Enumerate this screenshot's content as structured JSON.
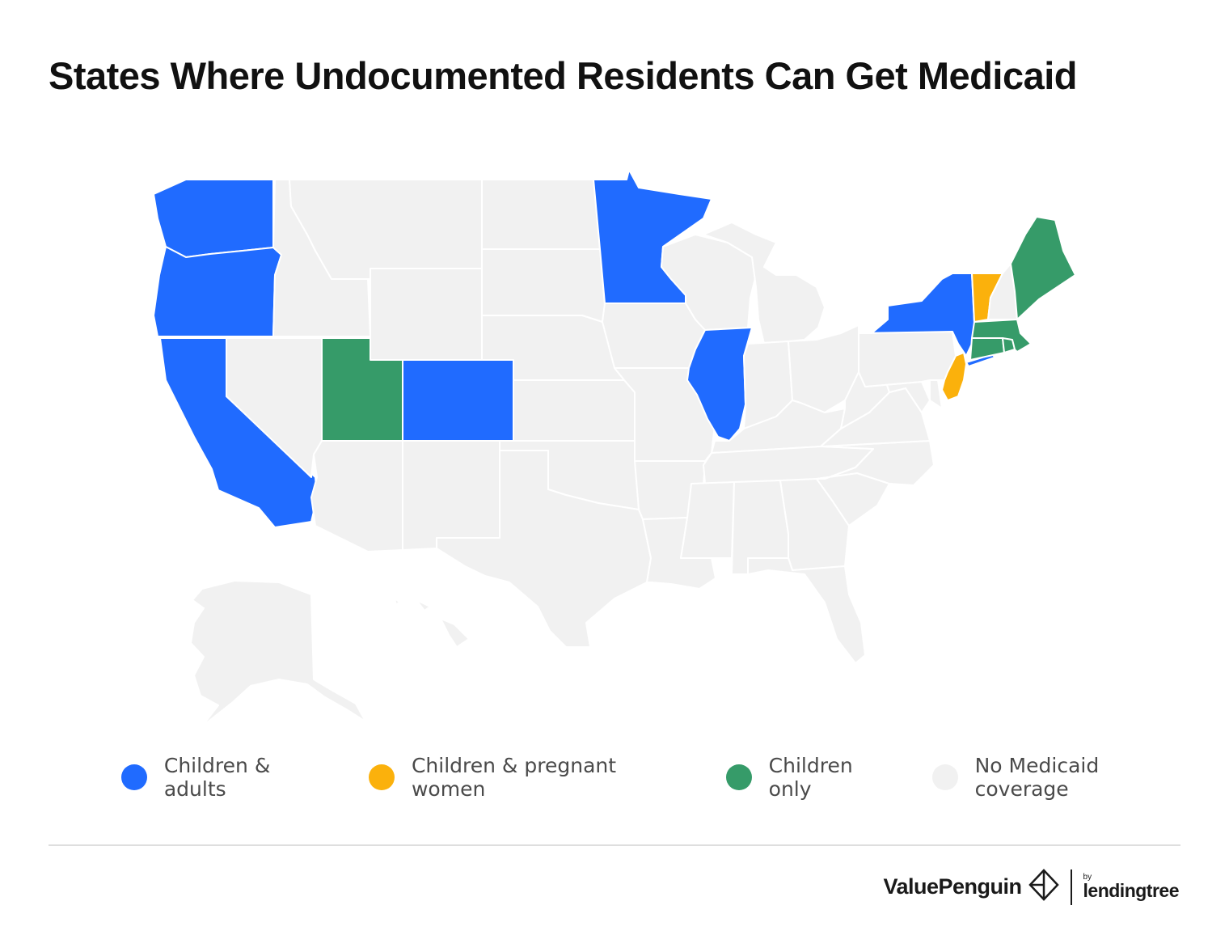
{
  "title": "States Where Undocumented Residents Can Get Medicaid",
  "colors": {
    "children_adults": "#206bff",
    "children_pregnant": "#fbb10c",
    "children_only": "#369b69",
    "none": "#f1f1f1"
  },
  "legend": [
    {
      "label": "Children & adults",
      "color": "#206bff"
    },
    {
      "label": "Children & pregnant women",
      "color": "#fbb10c"
    },
    {
      "label": "Children only",
      "color": "#369b69"
    },
    {
      "label": "No Medicaid coverage",
      "color": "#f1f1f1"
    }
  ],
  "coverage": {
    "children_adults": [
      "WA",
      "OR",
      "CA",
      "CO",
      "MN",
      "IL",
      "NY"
    ],
    "children_pregnant": [
      "VT",
      "NJ"
    ],
    "children_only": [
      "UT",
      "ME",
      "MA",
      "CT",
      "RI"
    ]
  },
  "branding": {
    "brand": "ValuePenguin",
    "by": "by",
    "partner": "lendingtree"
  }
}
